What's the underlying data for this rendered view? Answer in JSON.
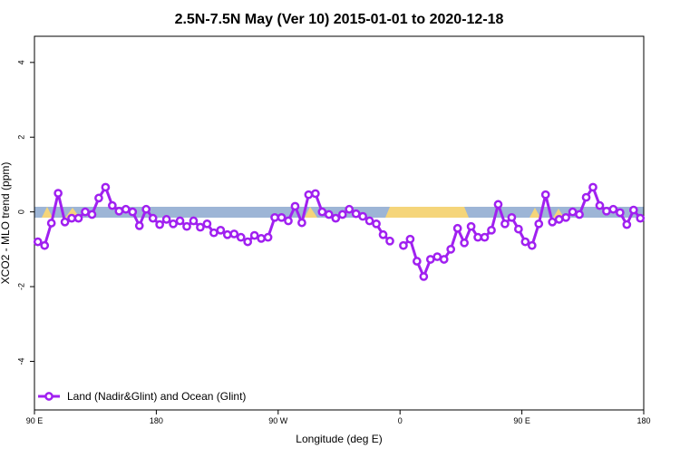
{
  "chart_data": {
    "type": "line",
    "title": "2.5N-7.5N May (Ver 10)   2015-01-01 to 2020-12-18",
    "x_label": "Longitude (deg E)",
    "y_label": "XCO2 - MLO trend (ppm)",
    "x": [
      92.5,
      97.5,
      102.5,
      107.5,
      112.5,
      117.5,
      122.5,
      127.5,
      132.5,
      137.5,
      142.5,
      147.5,
      152.5,
      157.5,
      162.5,
      167.5,
      172.5,
      177.5,
      182.5,
      187.5,
      192.5,
      197.5,
      202.5,
      207.5,
      212.5,
      217.5,
      222.5,
      227.5,
      232.5,
      237.5,
      242.5,
      247.5,
      252.5,
      257.5,
      262.5,
      267.5,
      272.5,
      277.5,
      282.5,
      287.5,
      292.5,
      297.5,
      302.5,
      307.5,
      312.5,
      317.5,
      322.5,
      327.5,
      332.5,
      337.5,
      342.5,
      347.5,
      352.5,
      357.5,
      362.5,
      367.5,
      372.5,
      377.5,
      382.5,
      387.5,
      392.5,
      397.5,
      402.5,
      407.5,
      412.5,
      417.5,
      422.5,
      427.5,
      432.5,
      437.5,
      442.5,
      447.5,
      452.5,
      457.5,
      462.5,
      467.5,
      472.5,
      477.5,
      482.5,
      487.5,
      492.5,
      497.5,
      502.5,
      507.5,
      512.5,
      517.5,
      522.5,
      527.5,
      532.5,
      537.5
    ],
    "series": [
      {
        "name": "Land (Nadir&Glint) and Ocean (Glint)",
        "color": "#a020f0",
        "values": [
          -0.8,
          -0.9,
          -0.3,
          0.5,
          -0.27,
          -0.17,
          -0.17,
          0,
          -0.07,
          0.37,
          0.66,
          0.17,
          0.02,
          0.07,
          0,
          -0.37,
          0.07,
          -0.17,
          -0.34,
          -0.2,
          -0.32,
          -0.24,
          -0.39,
          -0.24,
          -0.41,
          -0.32,
          -0.56,
          -0.49,
          -0.61,
          -0.59,
          -0.68,
          -0.8,
          -0.63,
          -0.71,
          -0.68,
          -0.15,
          -0.15,
          -0.24,
          0.15,
          -0.29,
          0.46,
          0.49,
          0,
          -0.07,
          -0.17,
          -0.07,
          0.07,
          -0.05,
          -0.12,
          -0.24,
          -0.32,
          -0.61,
          -0.78,
          null,
          -0.9,
          -0.73,
          -1.32,
          -1.73,
          -1.27,
          -1.2,
          -1.27,
          -1.0,
          -0.44,
          -0.83,
          -0.39,
          -0.68,
          -0.68,
          -0.49,
          0.2,
          -0.32,
          -0.15,
          -0.46,
          -0.8,
          -0.9,
          -0.32,
          0.46,
          -0.27,
          -0.2,
          -0.15,
          0,
          -0.07,
          0.39,
          0.66,
          0.17,
          0.02,
          0.07,
          -0.02,
          -0.34,
          0.05,
          -0.17
        ]
      }
    ],
    "xlim": [
      90,
      540
    ],
    "xticks": [
      {
        "value": 90,
        "label": "90 E"
      },
      {
        "value": 180,
        "label": "180"
      },
      {
        "value": 270,
        "label": "90 W"
      },
      {
        "value": 360,
        "label": "0"
      },
      {
        "value": 450,
        "label": "90 E"
      },
      {
        "value": 540,
        "label": "180"
      }
    ],
    "ylim": [
      -5.3,
      4.7
    ],
    "yticks": [
      -4,
      -2,
      0,
      2,
      4
    ],
    "legend": "bottom-left"
  }
}
